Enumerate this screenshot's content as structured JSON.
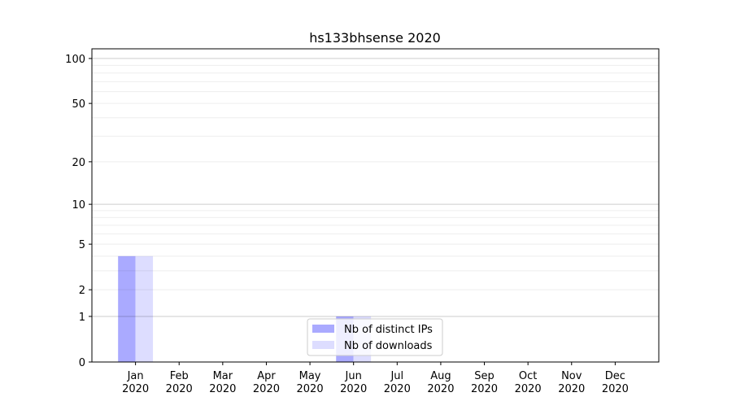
{
  "chart_data": {
    "type": "bar",
    "title": "hs133bhsense 2020",
    "xlabel": "",
    "ylabel": "",
    "yscale": "log10(1+y)",
    "ylim": [
      0,
      116
    ],
    "yticks": [
      0,
      1,
      2,
      5,
      10,
      20,
      50,
      100
    ],
    "grid": true,
    "legend_position": "bottom-center",
    "categories": [
      "Jan\n2020",
      "Feb\n2020",
      "Mar\n2020",
      "Apr\n2020",
      "May\n2020",
      "Jun\n2020",
      "Jul\n2020",
      "Aug\n2020",
      "Sep\n2020",
      "Oct\n2020",
      "Nov\n2020",
      "Dec\n2020"
    ],
    "series": [
      {
        "name": "Nb of distinct IPs",
        "color": "#aaaaff",
        "values": [
          4,
          0,
          0,
          0,
          0,
          1,
          0,
          0,
          0,
          0,
          0,
          0
        ]
      },
      {
        "name": "Nb of downloads",
        "color": "#ddddff",
        "values": [
          4,
          0,
          0,
          0,
          0,
          1,
          0,
          0,
          0,
          0,
          0,
          0
        ]
      }
    ]
  }
}
